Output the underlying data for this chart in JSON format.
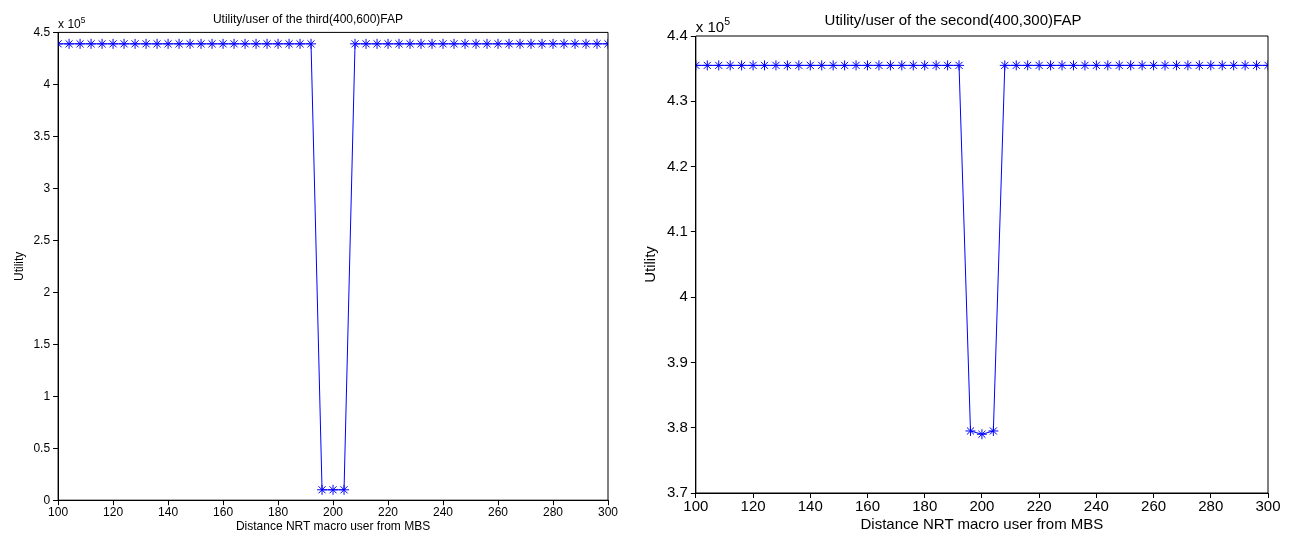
{
  "chart_data": [
    {
      "type": "line",
      "title": "Utility/user of the third(400,600)FAP",
      "xlabel": "Distance NRT macro user from MBS",
      "ylabel": "Utility",
      "annotations": [
        "x 10$^{5}$"
      ],
      "x": [
        100,
        104,
        108,
        112,
        116,
        120,
        124,
        128,
        132,
        136,
        140,
        144,
        148,
        152,
        156,
        160,
        164,
        168,
        172,
        176,
        180,
        184,
        188,
        192,
        196,
        200,
        204,
        208,
        212,
        216,
        220,
        224,
        228,
        232,
        236,
        240,
        244,
        248,
        252,
        256,
        260,
        264,
        268,
        272,
        276,
        280,
        284,
        288,
        292,
        296,
        300
      ],
      "series": [
        {
          "color": "#0000ff",
          "values": [
            4.39,
            4.39,
            4.39,
            4.39,
            4.39,
            4.39,
            4.39,
            4.39,
            4.39,
            4.39,
            4.39,
            4.39,
            4.39,
            4.39,
            4.39,
            4.39,
            4.39,
            4.39,
            4.39,
            4.39,
            4.39,
            4.39,
            4.39,
            4.39,
            0.1,
            0.1,
            0.1,
            4.39,
            4.39,
            4.39,
            4.39,
            4.39,
            4.39,
            4.39,
            4.39,
            4.39,
            4.39,
            4.39,
            4.39,
            4.39,
            4.39,
            4.39,
            4.39,
            4.39,
            4.39,
            4.39,
            4.39,
            4.39,
            4.39,
            4.39,
            4.39
          ]
        }
      ],
      "xlim": [
        100,
        300
      ],
      "xticks": [
        100,
        120,
        140,
        160,
        180,
        200,
        220,
        240,
        260,
        280,
        300
      ],
      "ylim": [
        0,
        4.5
      ],
      "yticks": [
        0,
        0.5,
        1,
        1.5,
        2,
        2.5,
        3,
        3.5,
        4,
        4.5
      ],
      "grid": false,
      "legend": false,
      "marker": "cross",
      "line_style": "solid"
    },
    {
      "type": "line",
      "title": "Utility/user of the second(400,300)FAP",
      "xlabel": "Distance NRT macro user from MBS",
      "ylabel": "Utility",
      "annotations": [
        "x 10$^{5}$"
      ],
      "x": [
        100,
        104,
        108,
        112,
        116,
        120,
        124,
        128,
        132,
        136,
        140,
        144,
        148,
        152,
        156,
        160,
        164,
        168,
        172,
        176,
        180,
        184,
        188,
        192,
        196,
        200,
        204,
        208,
        212,
        216,
        220,
        224,
        228,
        232,
        236,
        240,
        244,
        248,
        252,
        256,
        260,
        264,
        268,
        272,
        276,
        280,
        284,
        288,
        292,
        296,
        300
      ],
      "series": [
        {
          "color": "#0000ff",
          "values": [
            4.355,
            4.355,
            4.355,
            4.355,
            4.355,
            4.355,
            4.355,
            4.355,
            4.355,
            4.355,
            4.355,
            4.355,
            4.355,
            4.355,
            4.355,
            4.355,
            4.355,
            4.355,
            4.355,
            4.355,
            4.355,
            4.355,
            4.355,
            4.355,
            3.795,
            3.79,
            3.795,
            4.355,
            4.355,
            4.355,
            4.355,
            4.355,
            4.355,
            4.355,
            4.355,
            4.355,
            4.355,
            4.355,
            4.355,
            4.355,
            4.355,
            4.355,
            4.355,
            4.355,
            4.355,
            4.355,
            4.355,
            4.355,
            4.355,
            4.355,
            4.355
          ]
        }
      ],
      "xlim": [
        100,
        300
      ],
      "xticks": [
        100,
        120,
        140,
        160,
        180,
        200,
        220,
        240,
        260,
        280,
        300
      ],
      "ylim": [
        3.7,
        4.4
      ],
      "yticks": [
        3.7,
        3.8,
        3.9,
        4,
        4.1,
        4.2,
        4.3,
        4.4
      ],
      "grid": false,
      "legend": false,
      "marker": "cross",
      "line_style": "solid"
    }
  ]
}
